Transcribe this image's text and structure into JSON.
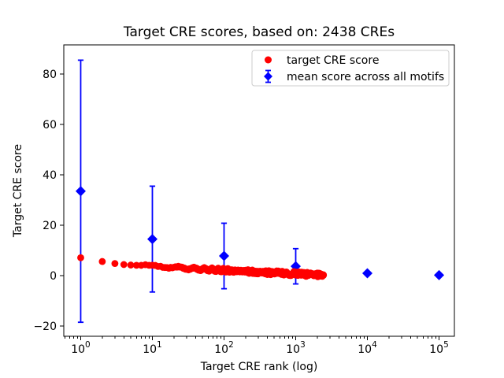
{
  "chart_data": {
    "type": "scatter",
    "title": "Target CRE scores, based on: 2438 CREs",
    "xlabel": "Target CRE rank (log)",
    "ylabel": "Target CRE score",
    "x_scale": "log",
    "n_cres": 2438,
    "x_tick_exponents": [
      0,
      1,
      2,
      3,
      4,
      5
    ],
    "y_ticks": [
      -20,
      0,
      20,
      40,
      60,
      80
    ],
    "xlim_log10": [
      -0.236,
      5.214
    ],
    "ylim": [
      -24.06,
      91.56
    ],
    "grid": false,
    "legend_position": "upper right",
    "colors": {
      "target": "#ff0000",
      "mean": "#0000ff",
      "frame": "#000000",
      "legend_border": "#cccccc",
      "background": "#ffffff"
    },
    "series": [
      {
        "name": "target CRE score",
        "marker": "circle",
        "color": "#ff0000",
        "n_points": 2438,
        "curve_points": [
          [
            1,
            7.1
          ],
          [
            2,
            5.6
          ],
          [
            3,
            4.8
          ],
          [
            4,
            4.4
          ],
          [
            5,
            4.2
          ],
          [
            7,
            4.0
          ],
          [
            10,
            3.85
          ],
          [
            20,
            3.3
          ],
          [
            30,
            2.9
          ],
          [
            50,
            2.55
          ],
          [
            100,
            2.1
          ],
          [
            150,
            1.9
          ],
          [
            200,
            1.7
          ],
          [
            300,
            1.45
          ],
          [
            500,
            1.1
          ],
          [
            700,
            0.95
          ],
          [
            1000,
            0.8
          ],
          [
            1500,
            0.45
          ],
          [
            2000,
            0.25
          ],
          [
            2438,
            0.1
          ]
        ]
      },
      {
        "name": "mean score across all motifs",
        "marker": "diamond",
        "color": "#0000ff",
        "points": [
          {
            "rank": 1,
            "mean": 33.5,
            "err": 52.0
          },
          {
            "rank": 10,
            "mean": 14.5,
            "err": 21.0
          },
          {
            "rank": 100,
            "mean": 7.8,
            "err": 13.0
          },
          {
            "rank": 1000,
            "mean": 3.7,
            "err": 7.0
          },
          {
            "rank": 10000,
            "mean": 0.95,
            "err": 0.6
          },
          {
            "rank": 100000,
            "mean": 0.2,
            "err": 0.3
          }
        ]
      }
    ]
  }
}
